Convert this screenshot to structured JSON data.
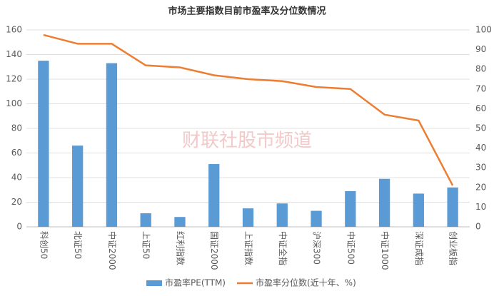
{
  "chart_data": {
    "type": "combo",
    "title": "市场主要指数目前市盈率及分位数情况",
    "watermark": "财联社股市频道",
    "categories": [
      "科创50",
      "北证50",
      "中证2000",
      "上证50",
      "红利指数",
      "国证2000",
      "上证指数",
      "中证全指",
      "沪深300",
      "中证500",
      "中证1000",
      "深证成指",
      "创业板指"
    ],
    "series": [
      {
        "name": "市盈率PE(TTM)",
        "type": "bar",
        "color": "#5b9bd5",
        "values": [
          135,
          66,
          133,
          11,
          8,
          51,
          15,
          19,
          13,
          29,
          39,
          27,
          32
        ]
      },
      {
        "name": "市盈率分位数(近十年、%)",
        "type": "line",
        "axis": "y2",
        "color": "#ed7d31",
        "values": [
          97.5,
          93,
          93,
          82,
          81,
          77,
          75,
          74,
          71,
          70,
          57,
          54,
          21
        ]
      }
    ],
    "ylim": [
      0,
      160
    ],
    "yticks": [
      0,
      20,
      40,
      60,
      80,
      100,
      120,
      140,
      160
    ],
    "y2lim": [
      0,
      100
    ],
    "y2ticks": [
      0,
      10,
      20,
      30,
      40,
      50,
      60,
      70,
      80,
      90,
      100
    ],
    "grid": true,
    "legend": "bottom"
  }
}
